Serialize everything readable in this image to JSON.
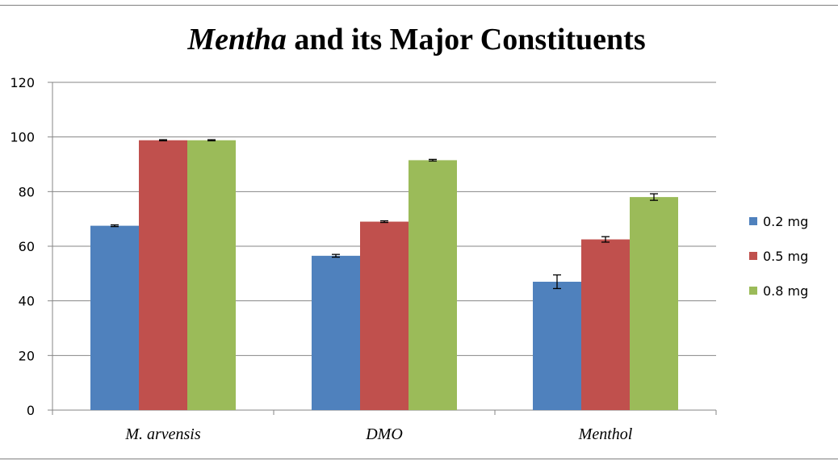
{
  "chart_data": {
    "type": "bar",
    "title_italic": "Mentha",
    "title_rest": " and its Major Constituents",
    "categories": [
      "M. arvensis",
      "DMO",
      "Menthol"
    ],
    "series": [
      {
        "name": "0.2 mg",
        "color": "#4f81bd",
        "values": [
          67.5,
          56.5,
          47.0
        ],
        "errors": [
          0.3,
          0.5,
          2.5
        ]
      },
      {
        "name": "0.5 mg",
        "color": "#c0504d",
        "values": [
          98.8,
          69.0,
          62.5
        ],
        "errors": [
          0.2,
          0.3,
          1.0
        ]
      },
      {
        "name": "0.8 mg",
        "color": "#9bbb59",
        "values": [
          98.8,
          91.5,
          78.0
        ],
        "errors": [
          0.2,
          0.3,
          1.2
        ]
      }
    ],
    "ylim": [
      0,
      120
    ],
    "yticks": [
      0,
      20,
      40,
      60,
      80,
      100,
      120
    ],
    "grid": true,
    "legend_position": "right"
  }
}
